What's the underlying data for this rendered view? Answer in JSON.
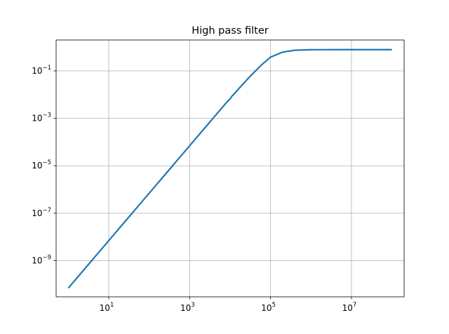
{
  "chart_data": {
    "type": "line",
    "title": "High pass filter",
    "xlabel": "",
    "ylabel": "",
    "xscale": "log",
    "yscale": "log",
    "xlim": [
      0.5,
      200000000
    ],
    "ylim": [
      3e-11,
      2
    ],
    "grid": true,
    "x_ticks": [
      {
        "base": "10",
        "exp": "1",
        "value": 10
      },
      {
        "base": "10",
        "exp": "3",
        "value": 1000
      },
      {
        "base": "10",
        "exp": "5",
        "value": 100000
      },
      {
        "base": "10",
        "exp": "7",
        "value": 10000000
      }
    ],
    "y_ticks": [
      {
        "base": "10",
        "exp": "−1",
        "value": 0.1
      },
      {
        "base": "10",
        "exp": "−3",
        "value": 0.001
      },
      {
        "base": "10",
        "exp": "−5",
        "value": 1e-05
      },
      {
        "base": "10",
        "exp": "−7",
        "value": 1e-07
      },
      {
        "base": "10",
        "exp": "−9",
        "value": 1e-09
      }
    ],
    "series": [
      {
        "color": "#1f77b4",
        "x": [
          1,
          10,
          100,
          1000,
          10000,
          30000,
          60000,
          100000,
          200000,
          400000,
          1000000,
          10000000,
          100000000
        ],
        "y": [
          7e-11,
          7e-09,
          7e-07,
          7e-05,
          0.007,
          0.055,
          0.18,
          0.38,
          0.62,
          0.74,
          0.78,
          0.785,
          0.785
        ]
      }
    ]
  }
}
